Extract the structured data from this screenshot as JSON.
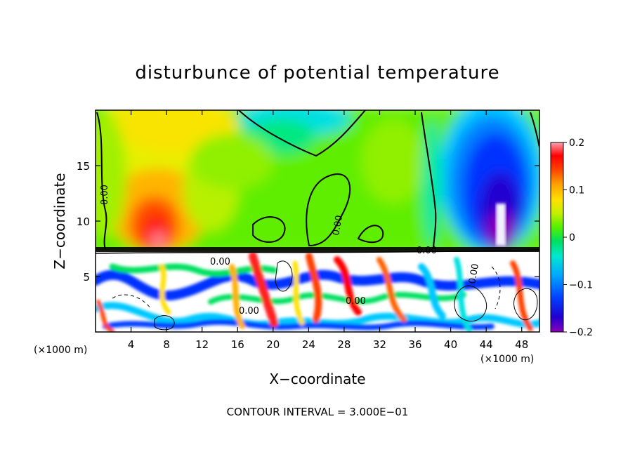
{
  "chart_data": {
    "type": "heatmap",
    "title": "disturbunce of potential temperature",
    "xlabel": "X−coordinate",
    "ylabel": "Z−coordinate",
    "x_unit_left": "(×1000 m)",
    "x_unit_right": "(×1000 m)",
    "x_range": [
      0,
      50
    ],
    "y_range": [
      0,
      20
    ],
    "x_ticks": [
      4,
      8,
      12,
      16,
      20,
      24,
      28,
      32,
      36,
      40,
      44,
      48
    ],
    "y_ticks": [
      5,
      10,
      15
    ],
    "colorbar": {
      "range": [
        -0.2,
        0.2
      ],
      "ticks": [
        {
          "value": 0.2,
          "label": "0.2"
        },
        {
          "value": 0.1,
          "label": "0.1"
        },
        {
          "value": 0.0,
          "label": "0"
        },
        {
          "value": -0.1,
          "label": "−0.1"
        },
        {
          "value": -0.2,
          "label": "−0.2"
        }
      ],
      "colors": [
        "#8a00b8",
        "#3000d0",
        "#0000ff",
        "#0040ff",
        "#0080ff",
        "#00b4ff",
        "#00e0e0",
        "#00f0a0",
        "#00e040",
        "#40f000",
        "#a0f000",
        "#e0f000",
        "#ffe000",
        "#ffb000",
        "#ff8000",
        "#ff4000",
        "#ff0000",
        "#ff4060",
        "#ff90a0"
      ]
    },
    "contour_labels": [
      "0.00",
      "0.00",
      "0.00",
      "0.00",
      "0.00",
      "0.00",
      "0.00"
    ],
    "footer": "CONTOUR INTERVAL = 3.000E−01"
  }
}
